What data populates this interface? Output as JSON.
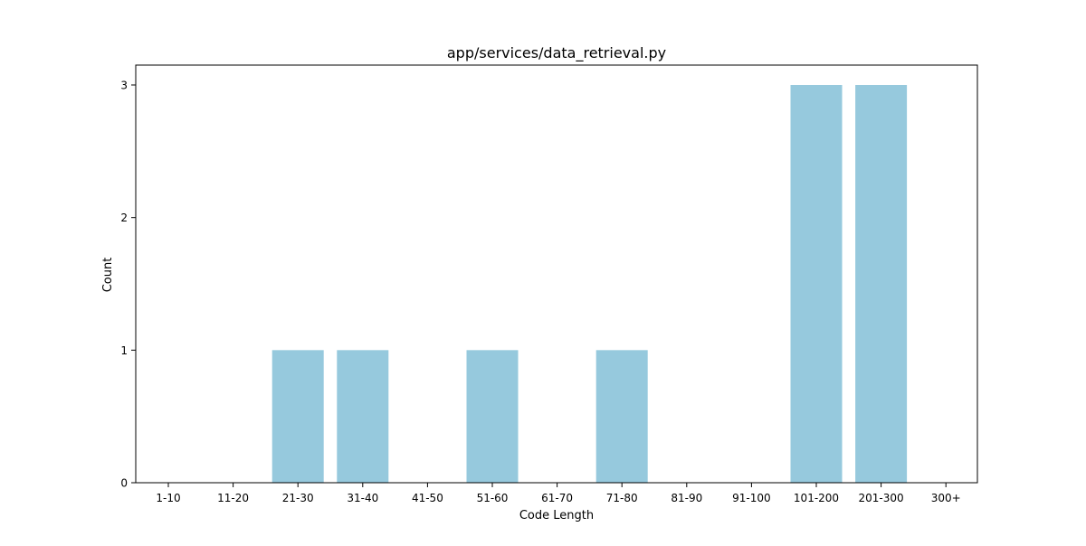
{
  "chart_data": {
    "type": "bar",
    "title": "app/services/data_retrieval.py",
    "xlabel": "Code Length",
    "ylabel": "Count",
    "categories": [
      "1-10",
      "11-20",
      "21-30",
      "31-40",
      "41-50",
      "51-60",
      "61-70",
      "71-80",
      "81-90",
      "91-100",
      "101-200",
      "201-300",
      "300+"
    ],
    "values": [
      0,
      0,
      1,
      1,
      0,
      1,
      0,
      1,
      0,
      0,
      3,
      3,
      0
    ],
    "ylim": [
      0,
      3.15
    ],
    "yticks": [
      0,
      1,
      2,
      3
    ],
    "grid": false,
    "colors": {
      "bar": "#96c9dd",
      "axis": "#000000",
      "background": "#ffffff"
    }
  }
}
